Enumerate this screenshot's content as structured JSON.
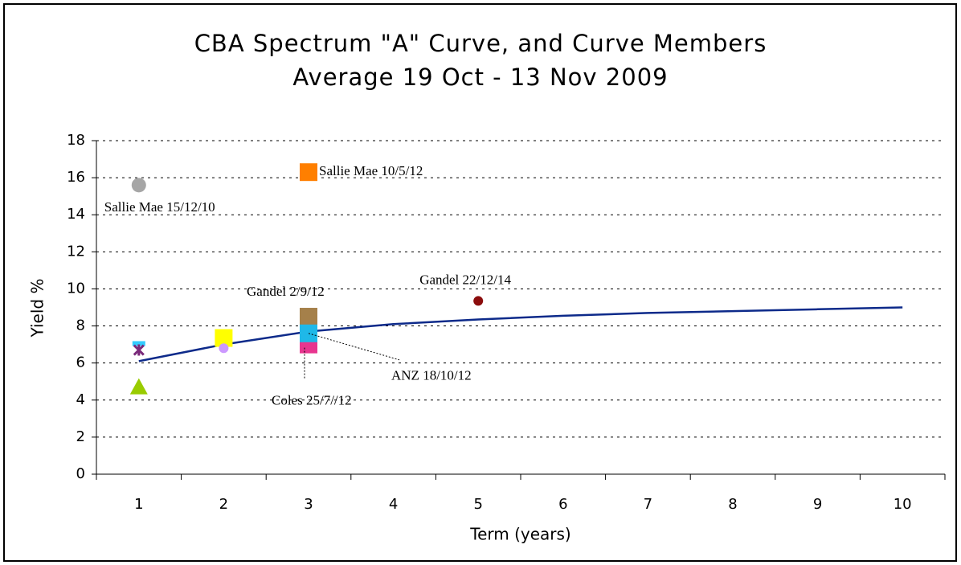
{
  "chart_data": {
    "type": "line",
    "title": "CBA Spectrum \"A\" Curve, and Curve Members",
    "subtitle": "Average 19 Oct - 13 Nov 2009",
    "x_label": "Term (years)",
    "y_label": "Yield %",
    "categories": [
      1,
      2,
      3,
      4,
      5,
      6,
      7,
      8,
      9,
      10
    ],
    "values": [
      6.1,
      7.0,
      7.7,
      8.1,
      8.35,
      8.55,
      8.7,
      8.8,
      8.9,
      9.0
    ],
    "color": "#0d2a8a",
    "ylim": [
      0,
      18
    ],
    "yticks": [
      0,
      2,
      4,
      6,
      8,
      10,
      12,
      14,
      16,
      18
    ],
    "grid": true,
    "points": [
      {
        "x": 1,
        "y": 15.6,
        "color": "#a6a6a6",
        "marker": "circle",
        "label": "Sallie Mae 15/12/10"
      },
      {
        "x": 3,
        "y": 16.3,
        "color": "#ff7f00",
        "marker": "square",
        "label": "Sallie Mae 10/5/12"
      },
      {
        "x": 3,
        "y": 8.5,
        "color": "#a5804a",
        "marker": "square",
        "label": "Gandel 2/9/12"
      },
      {
        "x": 5,
        "y": 9.35,
        "color": "#8b0d0d",
        "marker": "smallcircle",
        "label": "Gandel 22/12/14"
      },
      {
        "x": 3,
        "y": 7.0,
        "color": "#e8358f",
        "marker": "square",
        "label": "Coles 25/7//12"
      },
      {
        "x": 3,
        "y": 7.6,
        "color": "#1fb8e8",
        "marker": "square",
        "label": "ANZ 18/10/12"
      },
      {
        "x": 2,
        "y": 7.35,
        "color": "#ffff00",
        "marker": "square"
      },
      {
        "x": 2,
        "y": 6.8,
        "color": "#cc99ff",
        "marker": "smallcircle"
      },
      {
        "x": 1,
        "y": 7.05,
        "color": "#33ccff",
        "marker": "dash"
      },
      {
        "x": 1,
        "y": 6.7,
        "color": "#7a2a7a",
        "marker": "star"
      },
      {
        "x": 1,
        "y": 4.7,
        "color": "#99cc00",
        "marker": "triangle"
      }
    ]
  }
}
